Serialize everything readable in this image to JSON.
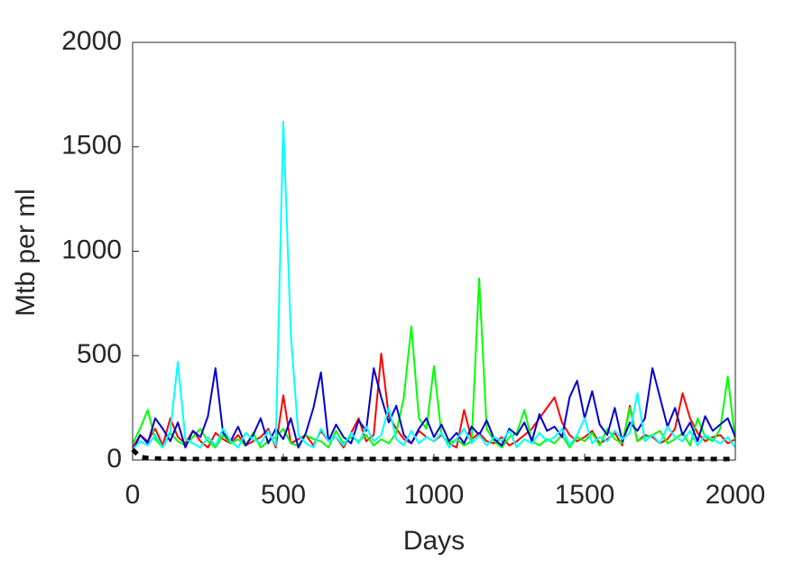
{
  "chart_data": {
    "type": "line",
    "xlabel": "Days",
    "ylabel": "Mtb per ml",
    "xlim": [
      0,
      2000
    ],
    "ylim": [
      0,
      2000
    ],
    "xticks": [
      0,
      500,
      1000,
      1500,
      2000
    ],
    "yticks": [
      0,
      500,
      1000,
      1500,
      2000
    ],
    "grid": false,
    "box": true,
    "x": [
      0,
      25,
      50,
      75,
      100,
      125,
      150,
      175,
      200,
      225,
      250,
      275,
      300,
      325,
      350,
      375,
      400,
      425,
      450,
      475,
      500,
      525,
      550,
      575,
      600,
      625,
      650,
      675,
      700,
      725,
      750,
      775,
      800,
      825,
      850,
      875,
      900,
      925,
      950,
      975,
      1000,
      1025,
      1050,
      1075,
      1100,
      1125,
      1150,
      1175,
      1200,
      1225,
      1250,
      1275,
      1300,
      1325,
      1350,
      1375,
      1400,
      1425,
      1450,
      1475,
      1500,
      1525,
      1550,
      1575,
      1600,
      1625,
      1650,
      1675,
      1700,
      1725,
      1750,
      1775,
      1800,
      1825,
      1850,
      1875,
      1900,
      1925,
      1950,
      1975,
      2000
    ],
    "series": [
      {
        "color": "#ff0000",
        "style": "solid",
        "values": [
          60,
          120,
          90,
          150,
          70,
          200,
          110,
          80,
          140,
          90,
          60,
          130,
          100,
          80,
          120,
          70,
          90,
          110,
          150,
          60,
          310,
          80,
          100,
          120,
          70,
          140,
          90,
          110,
          60,
          130,
          200,
          90,
          120,
          510,
          210,
          150,
          100,
          80,
          140,
          110,
          90,
          120,
          80,
          60,
          240,
          100,
          130,
          90,
          80,
          110,
          70,
          90,
          120,
          150,
          200,
          250,
          300,
          180,
          120,
          90,
          110,
          140,
          80,
          100,
          130,
          70,
          260,
          90,
          120,
          110,
          80,
          100,
          150,
          320,
          200,
          130,
          90,
          110,
          120,
          80,
          100
        ]
      },
      {
        "color": "#00ff00",
        "style": "solid",
        "values": [
          80,
          150,
          240,
          100,
          60,
          130,
          90,
          70,
          110,
          150,
          90,
          60,
          120,
          80,
          100,
          70,
          130,
          60,
          90,
          110,
          150,
          80,
          70,
          120,
          100,
          90,
          60,
          140,
          80,
          110,
          90,
          120,
          70,
          100,
          80,
          130,
          300,
          640,
          200,
          150,
          450,
          120,
          80,
          100,
          70,
          90,
          870,
          150,
          90,
          60,
          110,
          130,
          240,
          90,
          70,
          100,
          80,
          120,
          60,
          110,
          90,
          130,
          70,
          150,
          100,
          80,
          250,
          90,
          110,
          120,
          140,
          80,
          100,
          130,
          70,
          200,
          110,
          90,
          150,
          400,
          90
        ]
      },
      {
        "color": "#0000d0",
        "style": "solid",
        "values": [
          40,
          120,
          80,
          200,
          150,
          90,
          180,
          60,
          140,
          110,
          210,
          440,
          130,
          90,
          160,
          70,
          120,
          200,
          80,
          150,
          100,
          200,
          60,
          130,
          250,
          420,
          90,
          170,
          110,
          80,
          190,
          140,
          440,
          300,
          180,
          260,
          120,
          80,
          150,
          200,
          110,
          170,
          90,
          130,
          80,
          160,
          120,
          190,
          100,
          70,
          150,
          120,
          180,
          90,
          220,
          140,
          160,
          110,
          300,
          380,
          200,
          330,
          170,
          120,
          250,
          90,
          180,
          140,
          200,
          440,
          300,
          160,
          250,
          120,
          180,
          90,
          210,
          140,
          170,
          200,
          110
        ]
      },
      {
        "color": "#00ffff",
        "style": "solid",
        "values": [
          50,
          90,
          70,
          120,
          60,
          140,
          470,
          100,
          80,
          60,
          110,
          70,
          150,
          90,
          60,
          130,
          100,
          80,
          140,
          70,
          1620,
          600,
          120,
          80,
          60,
          150,
          90,
          110,
          70,
          130,
          80,
          160,
          90,
          120,
          250,
          100,
          70,
          140,
          80,
          110,
          90,
          130,
          60,
          100,
          150,
          80,
          120,
          70,
          110,
          90,
          140,
          60,
          100,
          80,
          130,
          90,
          110,
          150,
          70,
          120,
          200,
          80,
          110,
          90,
          140,
          100,
          130,
          320,
          90,
          120,
          80,
          160,
          110,
          90,
          140,
          70,
          120,
          100,
          80,
          110,
          60
        ]
      },
      {
        "color": "#000000",
        "style": "dashed",
        "values": [
          50,
          15,
          10,
          8,
          7,
          6,
          6,
          5,
          5,
          5,
          5,
          5,
          5,
          5,
          5,
          5,
          5,
          5,
          5,
          5,
          5,
          5,
          5,
          5,
          5,
          5,
          5,
          5,
          5,
          5,
          5,
          5,
          5,
          5,
          5,
          5,
          5,
          5,
          5,
          5,
          5,
          5,
          5,
          5,
          5,
          5,
          5,
          5,
          5,
          5,
          5,
          5,
          5,
          5,
          5,
          5,
          5,
          5,
          5,
          5,
          5,
          5,
          5,
          5,
          5,
          5,
          5,
          5,
          5,
          5,
          5,
          5,
          5,
          5,
          5,
          5,
          5,
          5,
          5,
          5,
          5
        ]
      }
    ]
  }
}
